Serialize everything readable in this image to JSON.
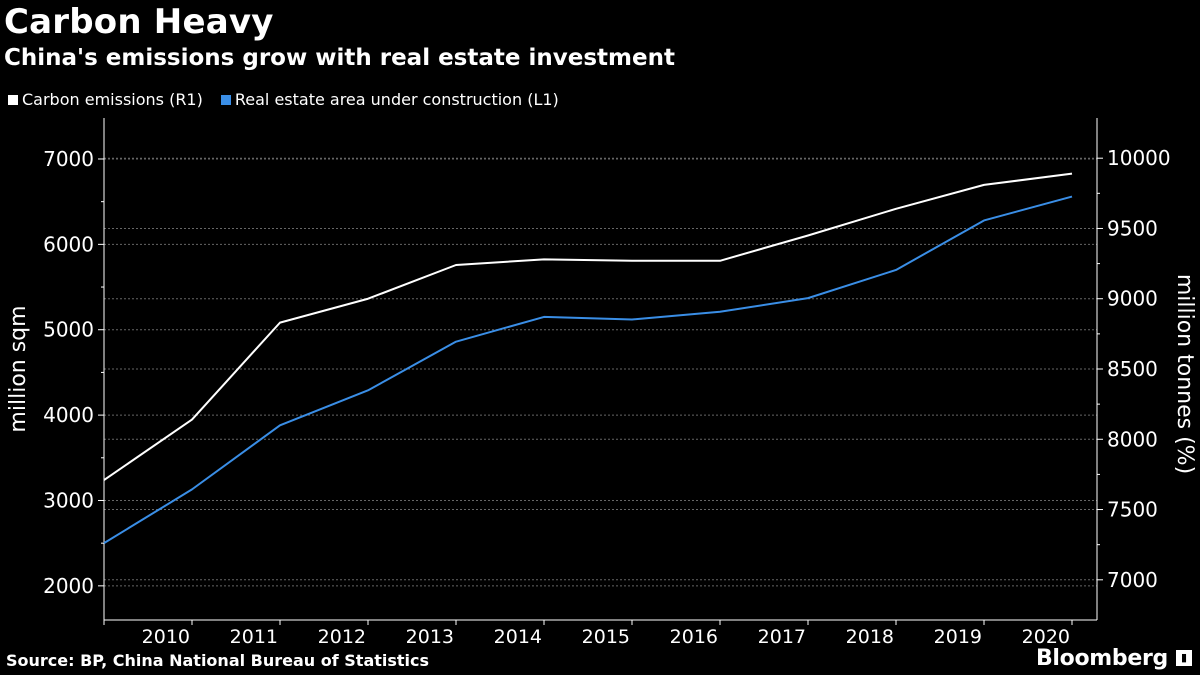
{
  "header": {
    "title": "Carbon Heavy",
    "subtitle": "China's emissions grow with real estate investment"
  },
  "legend": {
    "items": [
      {
        "label": "Carbon emissions (R1)",
        "color": "#ffffff"
      },
      {
        "label": "Real estate area under construction (L1)",
        "color": "#3a8ee6"
      }
    ]
  },
  "footer": {
    "source": "Source: BP, China National Bureau of Statistics",
    "brand": "Bloomberg",
    "brand_icon": "chart-icon"
  },
  "chart_data": {
    "type": "line",
    "title": "Carbon Heavy",
    "subtitle": "China's emissions grow with real estate investment",
    "x": [
      2009,
      2010,
      2011,
      2012,
      2013,
      2014,
      2015,
      2016,
      2017,
      2018,
      2019,
      2020
    ],
    "x_tick_labels": [
      "2010",
      "2011",
      "2012",
      "2013",
      "2014",
      "2015",
      "2016",
      "2017",
      "2018",
      "2019",
      "2020"
    ],
    "y_left": {
      "label": "million sqm",
      "range": [
        1600,
        7480
      ],
      "ticks": [
        2000,
        3000,
        4000,
        5000,
        6000,
        7000
      ],
      "tick_labels": [
        "2000",
        "3000",
        "4000",
        "5000",
        "6000",
        "7000"
      ]
    },
    "y_right": {
      "label": "million tonnes (%)",
      "range": [
        6714,
        10286
      ],
      "ticks": [
        7000,
        7500,
        8000,
        8500,
        9000,
        9500,
        10000
      ],
      "tick_labels": [
        "7000",
        "7500",
        "8000",
        "8500",
        "9000",
        "9500",
        "10000"
      ]
    },
    "grid": true,
    "series": [
      {
        "name": "Carbon emissions (R1)",
        "axis": "right",
        "color": "#ffffff",
        "values": [
          7710,
          8140,
          8830,
          9000,
          9240,
          9280,
          9270,
          9270,
          9450,
          9640,
          9810,
          9890
        ]
      },
      {
        "name": "Real estate area under construction (L1)",
        "axis": "left",
        "color": "#3a8ee6",
        "values": [
          2500,
          3130,
          3880,
          4290,
          4860,
          5150,
          5120,
          5210,
          5370,
          5700,
          6280,
          6560
        ]
      }
    ]
  }
}
